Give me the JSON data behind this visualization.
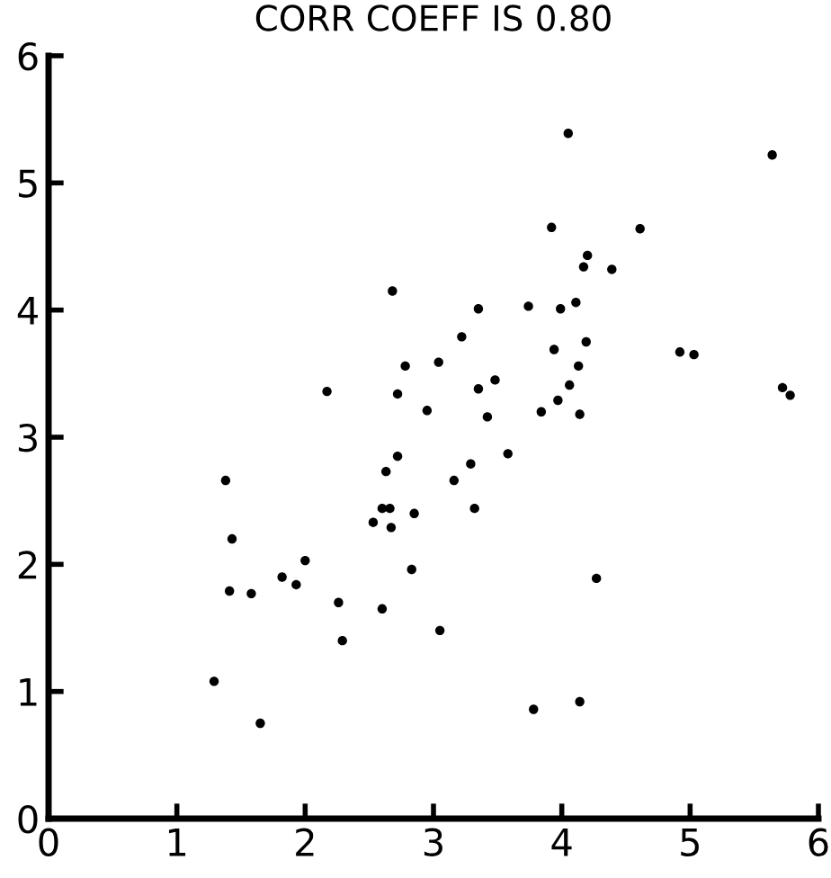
{
  "chart_data": {
    "type": "scatter",
    "title": "CORR COEFF IS 0.80",
    "x": [
      2.68,
      2.78,
      2.17,
      2.72,
      2.95,
      4.05,
      5.64,
      3.92,
      4.61,
      4.2,
      4.17,
      4.39,
      3.35,
      3.74,
      3.99,
      4.11,
      3.22,
      4.19,
      3.04,
      3.94,
      4.13,
      4.92,
      5.03,
      3.35,
      3.48,
      4.06,
      3.42,
      3.84,
      3.97,
      4.14,
      5.72,
      5.78,
      2.72,
      2.63,
      1.38,
      2.6,
      2.66,
      2.85,
      2.53,
      2.67,
      1.43,
      2.0,
      2.83,
      1.82,
      1.93,
      1.41,
      1.58,
      2.26,
      2.6,
      2.29,
      1.29,
      1.65,
      3.58,
      3.29,
      3.16,
      3.32,
      4.27,
      3.05,
      3.78,
      4.14
    ],
    "values": [
      4.15,
      3.56,
      3.36,
      3.34,
      3.21,
      5.39,
      5.22,
      4.65,
      4.64,
      4.43,
      4.34,
      4.32,
      4.01,
      4.03,
      4.01,
      4.06,
      3.79,
      3.75,
      3.59,
      3.69,
      3.56,
      3.67,
      3.65,
      3.38,
      3.45,
      3.41,
      3.16,
      3.2,
      3.29,
      3.18,
      3.39,
      3.33,
      2.85,
      2.73,
      2.66,
      2.44,
      2.44,
      2.4,
      2.33,
      2.29,
      2.2,
      2.03,
      1.96,
      1.9,
      1.84,
      1.79,
      1.77,
      1.7,
      1.65,
      1.4,
      1.08,
      0.75,
      2.87,
      2.79,
      2.66,
      2.44,
      1.89,
      1.48,
      0.86,
      0.92
    ],
    "color": "#000000",
    "marker": "circle",
    "grid": false,
    "xlim": [
      0,
      6
    ],
    "xticks": [
      0,
      1,
      2,
      3,
      4,
      5,
      6
    ],
    "ylim": [
      0,
      6
    ],
    "yticks": [
      0,
      1,
      2,
      3,
      4,
      5,
      6
    ]
  }
}
